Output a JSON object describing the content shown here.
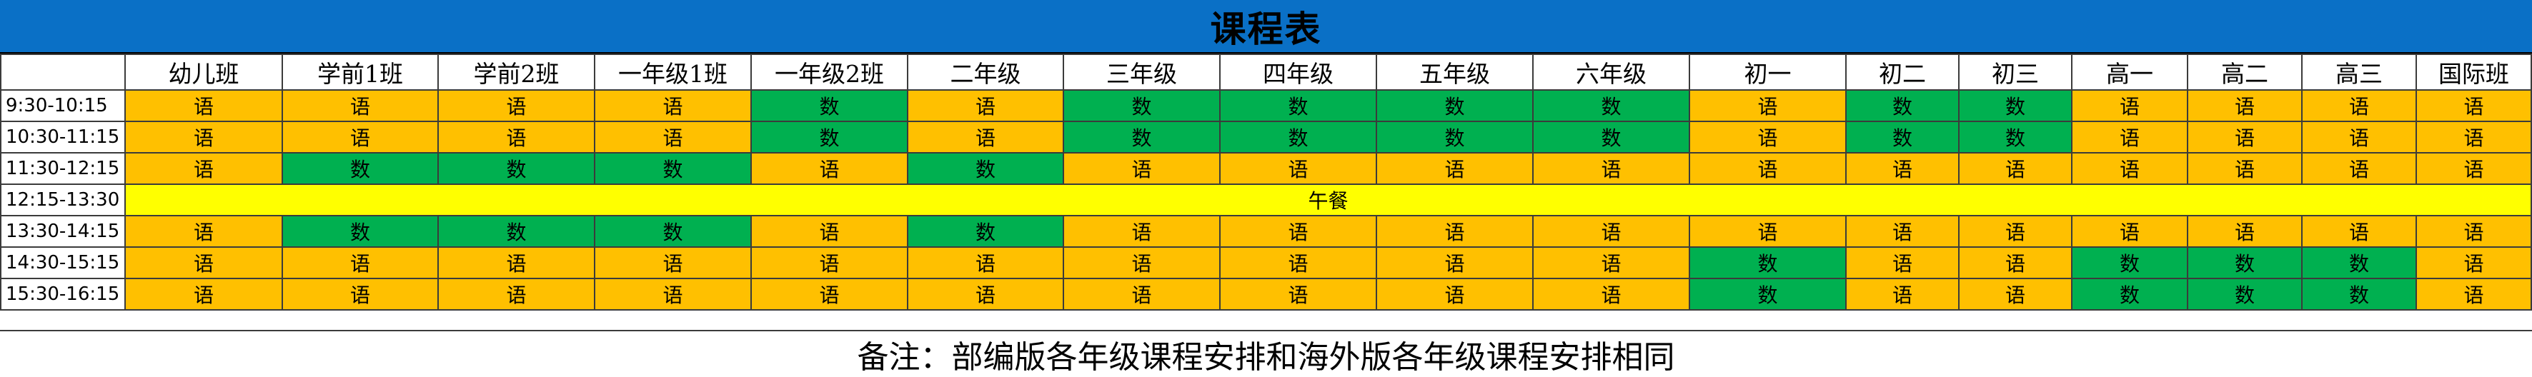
{
  "title": "课程表",
  "colors": {
    "title_bg": "#0a70c6",
    "yu": "#ffc000",
    "shu": "#00b050",
    "lunch": "#ffff00"
  },
  "columns": [
    "幼儿班",
    "学前1班",
    "学前2班",
    "一年级1班",
    "一年级2班",
    "二年级",
    "三年级",
    "四年级",
    "五年级",
    "六年级",
    "初一",
    "初二",
    "初三",
    "高一",
    "高二",
    "高三",
    "国际班"
  ],
  "rows": [
    {
      "time": "9:30-10:15",
      "cells": [
        "语",
        "语",
        "语",
        "语",
        "数",
        "语",
        "数",
        "数",
        "数",
        "数",
        "语",
        "数",
        "数",
        "语",
        "语",
        "语",
        "语"
      ]
    },
    {
      "time": "10:30-11:15",
      "cells": [
        "语",
        "语",
        "语",
        "语",
        "数",
        "语",
        "数",
        "数",
        "数",
        "数",
        "语",
        "数",
        "数",
        "语",
        "语",
        "语",
        "语"
      ]
    },
    {
      "time": "11:30-12:15",
      "cells": [
        "语",
        "数",
        "数",
        "数",
        "语",
        "数",
        "语",
        "语",
        "语",
        "语",
        "语",
        "语",
        "语",
        "语",
        "语",
        "语",
        "语"
      ]
    },
    {
      "time": "12:15-13:30",
      "lunch": "午餐"
    },
    {
      "time": "13:30-14:15",
      "cells": [
        "语",
        "数",
        "数",
        "数",
        "语",
        "数",
        "语",
        "语",
        "语",
        "语",
        "语",
        "语",
        "语",
        "语",
        "语",
        "语",
        "语"
      ]
    },
    {
      "time": "14:30-15:15",
      "cells": [
        "语",
        "语",
        "语",
        "语",
        "语",
        "语",
        "语",
        "语",
        "语",
        "语",
        "数",
        "语",
        "语",
        "数",
        "数",
        "数",
        "语"
      ]
    },
    {
      "time": "15:30-16:15",
      "cells": [
        "语",
        "语",
        "语",
        "语",
        "语",
        "语",
        "语",
        "语",
        "语",
        "语",
        "数",
        "语",
        "语",
        "数",
        "数",
        "数",
        "语"
      ]
    }
  ],
  "note": "备注：部编版各年级课程安排和海外版各年级课程安排相同"
}
